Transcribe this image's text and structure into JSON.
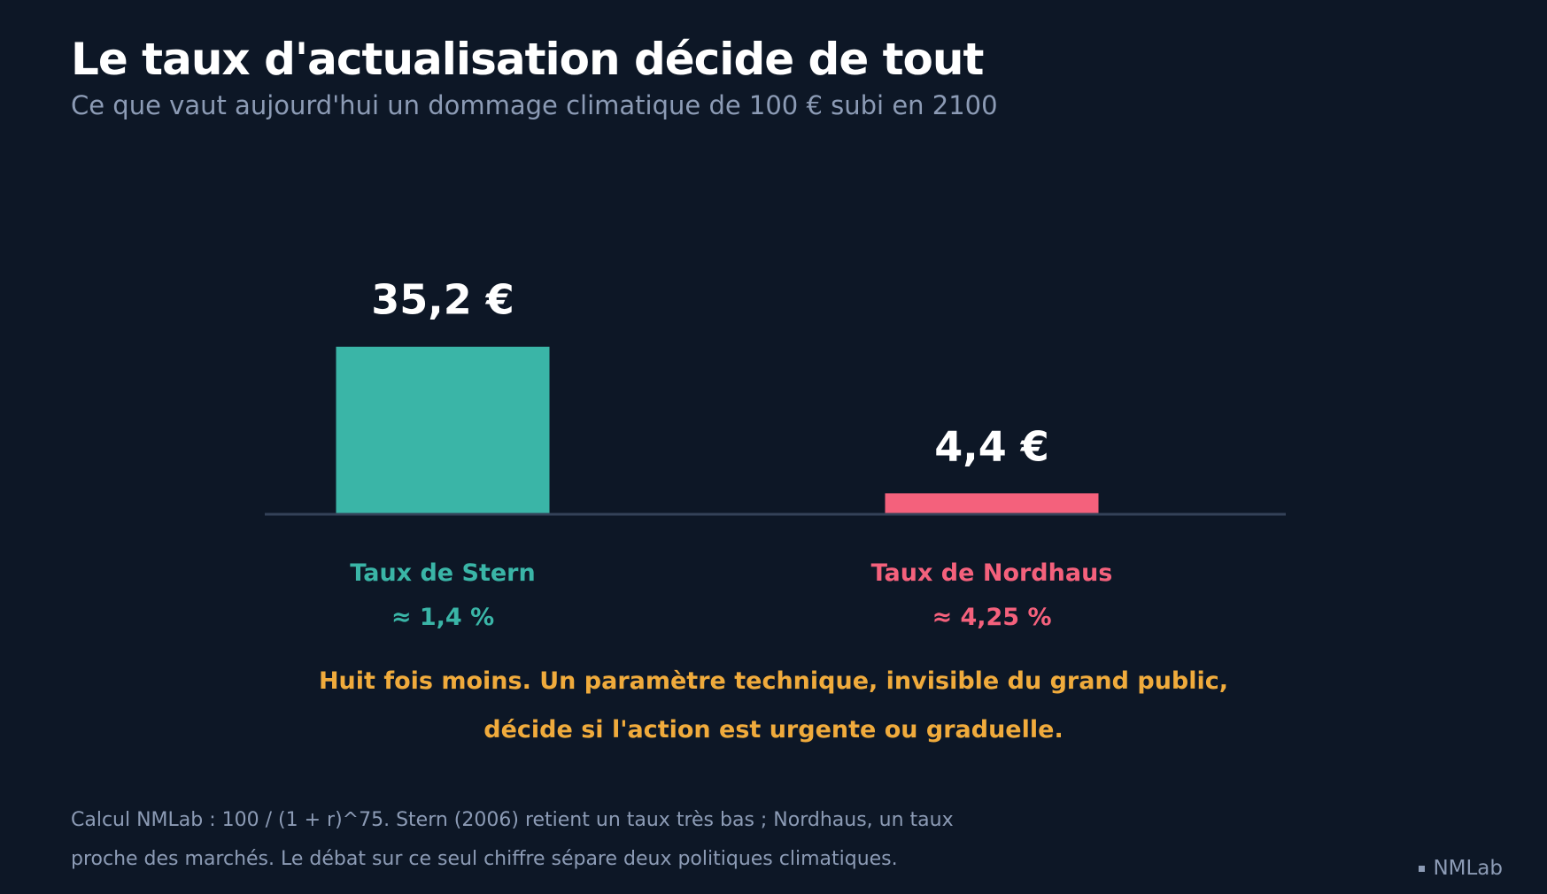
{
  "header": {
    "title": "Le taux d'actualisation décide de tout",
    "subtitle": "Ce que vaut aujourd'hui un dommage climatique de 100 € subi en 2100"
  },
  "chart_data": {
    "type": "bar",
    "categories": [
      "Taux de Stern",
      "Taux de Nordhaus"
    ],
    "category_sublabels": [
      "≈ 1,4 %",
      "≈ 4,25 %"
    ],
    "values": [
      35.2,
      4.4
    ],
    "value_labels": [
      "35,2 €",
      "4,4 €"
    ],
    "colors": [
      "#3ab5a7",
      "#f4617c"
    ],
    "ylim": [
      0,
      38.5
    ],
    "grid": false,
    "legend": "none"
  },
  "callout": {
    "line1": "Huit fois moins. Un paramètre technique, invisible du grand public,",
    "line2": "décide si l'action est urgente ou graduelle."
  },
  "footnote": {
    "line1": "Calcul NMLab : 100 / (1 + r)^75. Stern (2006) retient un taux très bas ; Nordhaus, un taux",
    "line2": "proche des marchés. Le débat sur ce seul chiffre sépare deux politiques climatiques."
  },
  "brand": {
    "label": "NMLab"
  }
}
